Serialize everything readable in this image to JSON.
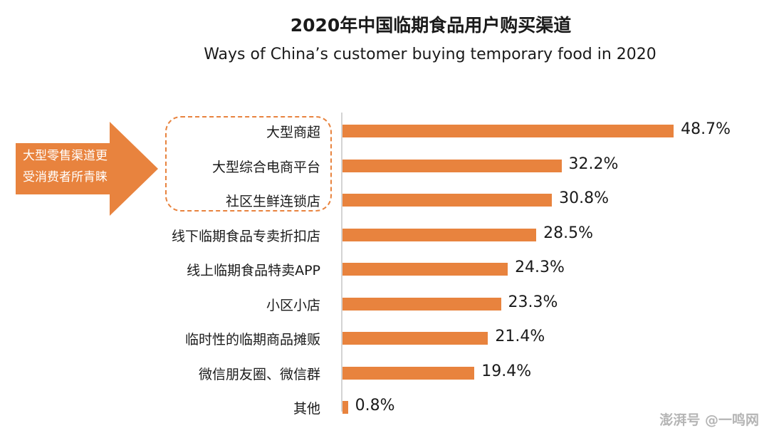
{
  "chart_data": {
    "type": "bar",
    "orientation": "horizontal",
    "title": "2020年中国临期食品用户购买渠道",
    "subtitle": "Ways of China’s customer buying temporary food in 2020",
    "categories": [
      "大型商超",
      "大型综合电商平台",
      "社区生鲜连锁店",
      "线下临期食品专卖折扣店",
      "线上临期食品特卖APP",
      "小区小店",
      "临时性的临期商品摊贩",
      "微信朋友圈、微信群",
      "其他"
    ],
    "values": [
      48.7,
      32.2,
      30.8,
      28.5,
      24.3,
      23.3,
      21.4,
      19.4,
      0.8
    ],
    "value_labels": [
      "48.7%",
      "32.2%",
      "30.8%",
      "28.5%",
      "24.3%",
      "23.3%",
      "21.4%",
      "19.4%",
      "0.8%"
    ],
    "unit": "%",
    "xlim": [
      0,
      50
    ],
    "bar_color": "#e8833e",
    "grid": false,
    "annotation": {
      "text_lines": [
        "大型零售渠道更",
        "受消费者所青睐"
      ],
      "highlighted_categories": [
        "大型商超",
        "大型综合电商平台",
        "社区生鲜连锁店"
      ],
      "color": "#e8833e"
    }
  },
  "watermark": "澎湃号 @一鸣网"
}
